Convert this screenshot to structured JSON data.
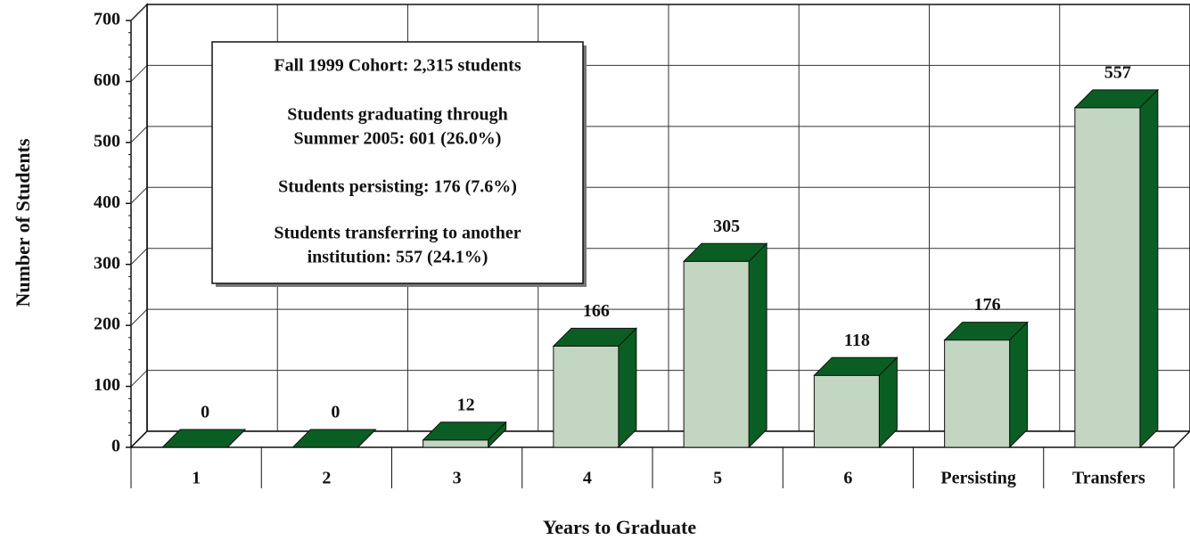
{
  "chart_data": {
    "type": "bar3d",
    "x_label": "Years to Graduate",
    "y_label": "Number of Students",
    "categories": [
      "1",
      "2",
      "3",
      "4",
      "5",
      "6",
      "Persisting",
      "Transfers"
    ],
    "values": [
      0,
      0,
      12,
      166,
      305,
      118,
      176,
      557
    ],
    "color": "#c2d6c2",
    "side_color": "#0b5e23",
    "ylim": [
      0,
      700
    ],
    "yticks": [
      0,
      100,
      200,
      300,
      400,
      500,
      600,
      700
    ],
    "grid": true,
    "annotation": [
      "Fall 1999 Cohort:  2,315 students",
      "Students graduating through",
      "Summer 2005:  601 (26.0%)",
      "Students persisting:  176 (7.6%)",
      "Students transferring to another",
      "institution:  557 (24.1%)"
    ]
  }
}
